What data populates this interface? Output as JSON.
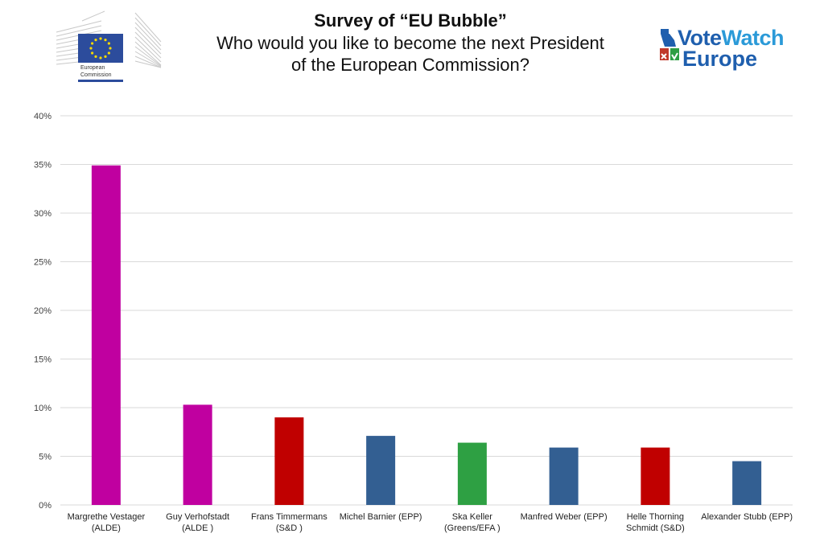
{
  "header": {
    "title": "Survey of “EU Bubble”",
    "subtitle_line1": "Who would you like to become the next President",
    "subtitle_line2": "of the European Commission?"
  },
  "logos": {
    "left": {
      "name": "European Commission",
      "line1": "European",
      "line2": "Commission",
      "flag_color": "#2c4c9c",
      "star_color": "#f5d800"
    },
    "right": {
      "word1a": "Vote",
      "word1b": "Watch",
      "word2": "Europe",
      "color_dark": "#1f5fae",
      "color_light": "#2b9ad8"
    }
  },
  "colors": {
    "ALDE": "#c000a0",
    "S&D": "#c00000",
    "EPP": "#335f92",
    "Greens/EFA": "#2ea043",
    "grid": "#d9d9d9"
  },
  "chart_data": {
    "type": "bar",
    "title": "Survey of “EU Bubble” Who would you like to become the next President of the European Commission?",
    "xlabel": "",
    "ylabel": "",
    "ylim": [
      0,
      40
    ],
    "yticks": [
      "0%",
      "5%",
      "10%",
      "15%",
      "20%",
      "25%",
      "30%",
      "35%",
      "40%"
    ],
    "ytick_values": [
      0,
      5,
      10,
      15,
      20,
      25,
      30,
      35,
      40
    ],
    "grid": true,
    "legend": "none",
    "categories": [
      [
        "Margrethe Vestager",
        "(ALDE)"
      ],
      [
        "Guy Verhofstadt",
        "(ALDE )"
      ],
      [
        "Frans Timmermans",
        "(S&D )"
      ],
      [
        "Michel Barnier (EPP)"
      ],
      [
        "Ska Keller",
        "(Greens/EFA )"
      ],
      [
        "Manfred Weber (EPP)"
      ],
      [
        "Helle Thorning",
        "Schmidt (S&D)"
      ],
      [
        "Alexander Stubb (EPP)"
      ]
    ],
    "groups": [
      "ALDE",
      "ALDE",
      "S&D",
      "EPP",
      "Greens/EFA",
      "EPP",
      "S&D",
      "EPP"
    ],
    "values": [
      34.9,
      10.3,
      9.0,
      7.1,
      6.4,
      5.9,
      5.9,
      4.5
    ],
    "unit": "%"
  }
}
